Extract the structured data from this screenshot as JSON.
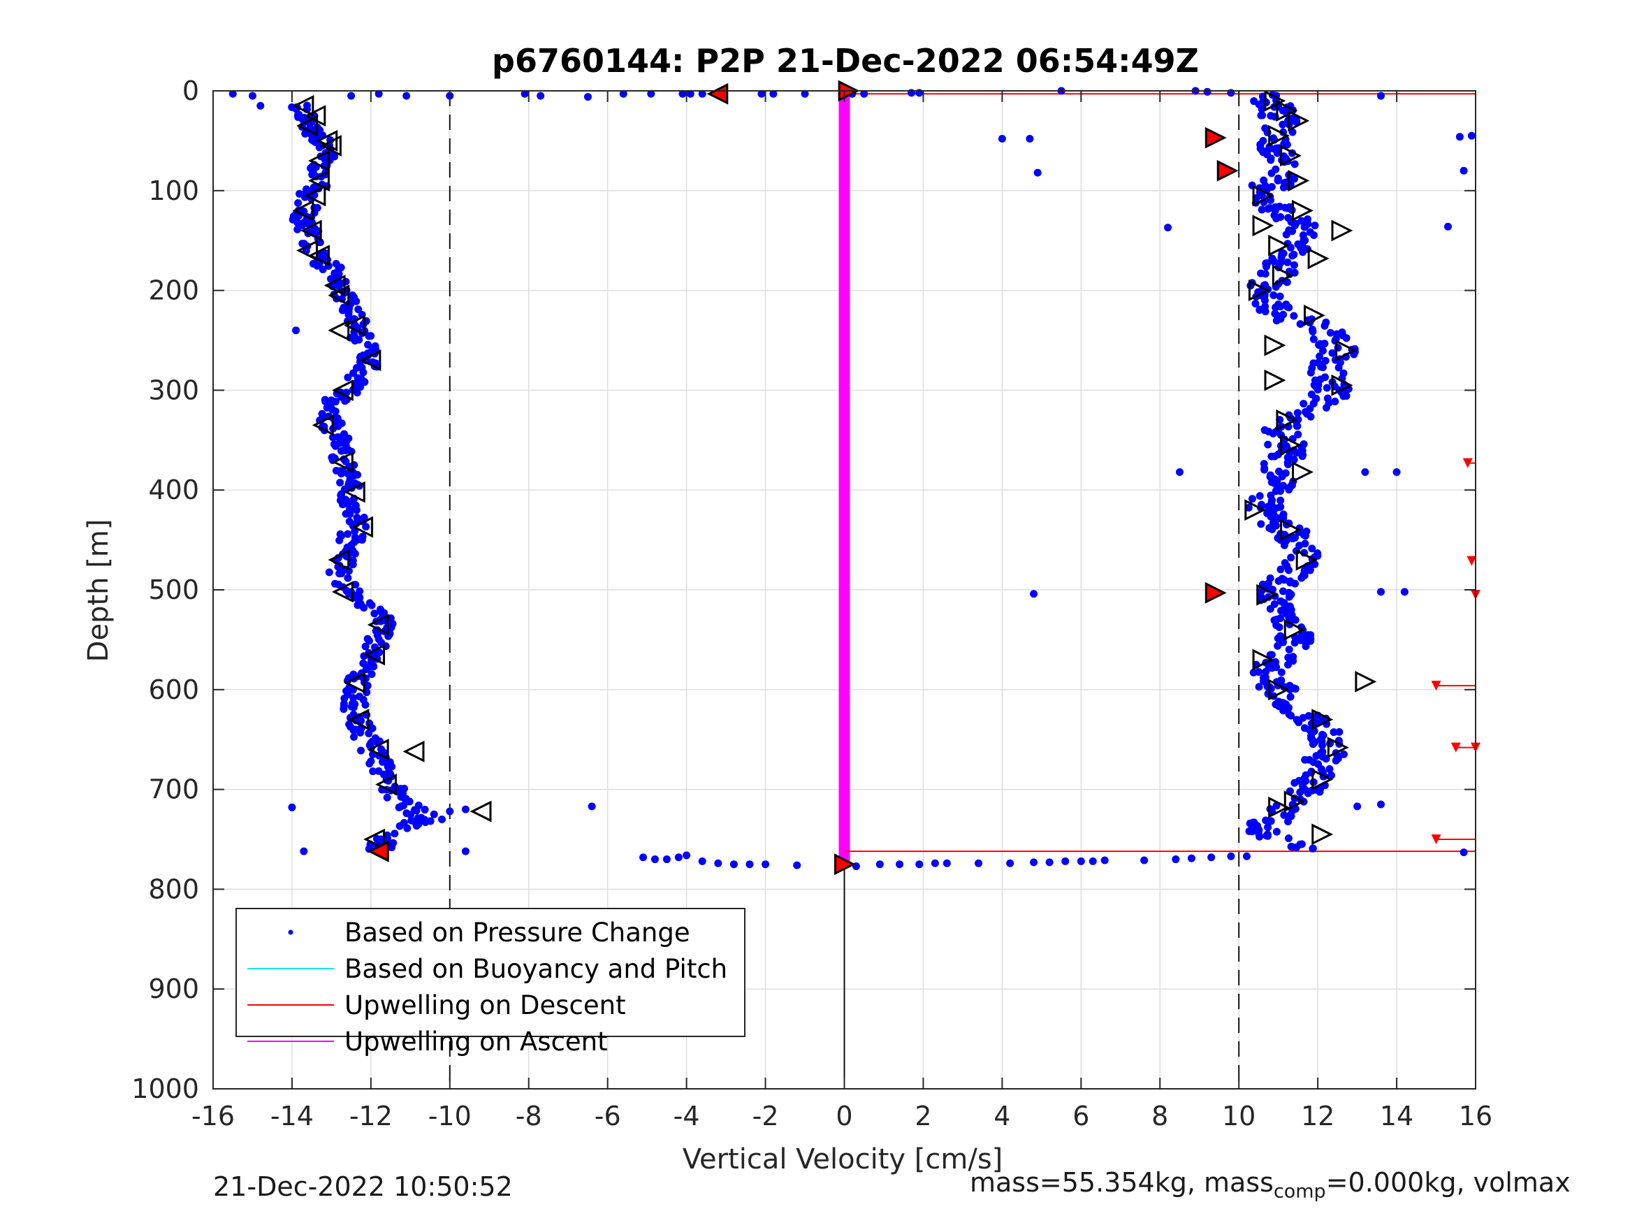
{
  "chart_data": {
    "type": "scatter",
    "title": "p6760144: P2P 21-Dec-2022 06:54:49Z",
    "xlabel": "Vertical Velocity [cm/s]",
    "ylabel": "Depth [m]",
    "xlim": [
      -16,
      16
    ],
    "ylim": [
      0,
      1000
    ],
    "y_reversed": true,
    "grid": true,
    "xticks": [
      -16,
      -14,
      -12,
      -10,
      -8,
      -6,
      -4,
      -2,
      0,
      2,
      4,
      6,
      8,
      10,
      12,
      14,
      16
    ],
    "yticks": [
      0,
      100,
      200,
      300,
      400,
      500,
      600,
      700,
      800,
      900,
      1000
    ],
    "reference_lines": {
      "vertical_dashed": [
        -10,
        10
      ],
      "vertical_solid": 0,
      "solid_depth_range": [
        770,
        1000
      ]
    },
    "legend": {
      "placement": "bottom-left",
      "entries": [
        {
          "label": "Based on Pressure Change",
          "style": "dot",
          "color": "#0000ff"
        },
        {
          "label": "Based on Buoyancy and Pitch",
          "style": "line",
          "color": "#00e5ee"
        },
        {
          "label": "Upwelling on Descent",
          "style": "line",
          "color": "#ff0000"
        },
        {
          "label": "Upwelling on Ascent",
          "style": "line",
          "color": "#ff00ff"
        }
      ]
    },
    "series": [
      {
        "name": "Based on Pressure Change",
        "color": "#0000ff",
        "descent_profile": [
          [
            -13.9,
            10
          ],
          [
            -13.6,
            30
          ],
          [
            -13.3,
            50
          ],
          [
            -13.2,
            70
          ],
          [
            -13.3,
            90
          ],
          [
            -13.6,
            110
          ],
          [
            -13.7,
            130
          ],
          [
            -13.5,
            150
          ],
          [
            -13.2,
            170
          ],
          [
            -12.8,
            190
          ],
          [
            -12.6,
            210
          ],
          [
            -12.4,
            230
          ],
          [
            -12.2,
            250
          ],
          [
            -12.0,
            270
          ],
          [
            -12.4,
            290
          ],
          [
            -12.9,
            310
          ],
          [
            -13.0,
            330
          ],
          [
            -12.8,
            350
          ],
          [
            -12.7,
            370
          ],
          [
            -12.5,
            390
          ],
          [
            -12.6,
            410
          ],
          [
            -12.4,
            430
          ],
          [
            -12.5,
            450
          ],
          [
            -12.7,
            470
          ],
          [
            -12.8,
            490
          ],
          [
            -12.3,
            510
          ],
          [
            -11.7,
            530
          ],
          [
            -11.8,
            550
          ],
          [
            -12.0,
            570
          ],
          [
            -12.3,
            590
          ],
          [
            -12.4,
            610
          ],
          [
            -12.4,
            630
          ],
          [
            -12.1,
            650
          ],
          [
            -11.8,
            670
          ],
          [
            -11.6,
            690
          ],
          [
            -11.3,
            710
          ],
          [
            -10.6,
            730
          ],
          [
            -11.6,
            750
          ],
          [
            -11.8,
            760
          ]
        ],
        "ascent_profile": [
          [
            10.6,
            5
          ],
          [
            11.0,
            20
          ],
          [
            11.1,
            40
          ],
          [
            10.9,
            60
          ],
          [
            11.2,
            80
          ],
          [
            10.7,
            100
          ],
          [
            11.0,
            120
          ],
          [
            11.6,
            140
          ],
          [
            11.4,
            160
          ],
          [
            11.0,
            180
          ],
          [
            10.6,
            200
          ],
          [
            10.9,
            220
          ],
          [
            12.1,
            240
          ],
          [
            12.6,
            260
          ],
          [
            12.2,
            280
          ],
          [
            12.4,
            300
          ],
          [
            11.7,
            320
          ],
          [
            11.0,
            340
          ],
          [
            11.3,
            360
          ],
          [
            10.9,
            380
          ],
          [
            11.0,
            400
          ],
          [
            10.5,
            420
          ],
          [
            11.2,
            440
          ],
          [
            11.7,
            460
          ],
          [
            11.4,
            480
          ],
          [
            10.8,
            500
          ],
          [
            11.1,
            520
          ],
          [
            11.5,
            540
          ],
          [
            11.3,
            560
          ],
          [
            10.7,
            580
          ],
          [
            11.0,
            600
          ],
          [
            11.4,
            620
          ],
          [
            12.1,
            640
          ],
          [
            12.3,
            660
          ],
          [
            12.0,
            680
          ],
          [
            11.7,
            700
          ],
          [
            11.3,
            720
          ],
          [
            10.4,
            740
          ],
          [
            11.8,
            760
          ]
        ],
        "surface_points": [
          [
            -15.5,
            3
          ],
          [
            -15.0,
            5
          ],
          [
            -14.8,
            15
          ],
          [
            -12.5,
            5
          ],
          [
            -11.8,
            3
          ],
          [
            -11.1,
            5
          ],
          [
            -10.0,
            5
          ],
          [
            -8.1,
            3
          ],
          [
            -7.7,
            5
          ],
          [
            -6.5,
            6
          ],
          [
            -5.6,
            3
          ],
          [
            -4.9,
            3
          ],
          [
            -4.1,
            3
          ],
          [
            -3.9,
            3
          ],
          [
            -3.6,
            3
          ],
          [
            -2.1,
            3
          ],
          [
            -1.8,
            3
          ],
          [
            -1.0,
            3
          ],
          [
            0.2,
            3
          ],
          [
            0.5,
            3
          ],
          [
            1.7,
            2
          ],
          [
            1.9,
            2
          ],
          [
            5.5,
            0
          ],
          [
            8.9,
            0
          ],
          [
            9.2,
            1
          ],
          [
            9.8,
            2
          ],
          [
            13.6,
            5
          ]
        ],
        "outlier_points": [
          [
            4.0,
            48
          ],
          [
            4.7,
            48
          ],
          [
            4.9,
            82
          ],
          [
            8.2,
            137
          ],
          [
            15.3,
            136
          ],
          [
            15.6,
            46
          ],
          [
            15.9,
            45
          ],
          [
            15.7,
            80
          ],
          [
            8.5,
            382
          ],
          [
            14.0,
            382
          ],
          [
            13.2,
            382
          ],
          [
            4.8,
            504
          ],
          [
            13.6,
            502
          ],
          [
            14.2,
            502
          ],
          [
            13.6,
            715
          ],
          [
            13.0,
            717
          ],
          [
            15.7,
            763
          ],
          [
            -14.0,
            718
          ],
          [
            -13.7,
            762
          ],
          [
            -9.6,
            762
          ],
          [
            -6.4,
            717
          ],
          [
            -13.9,
            240
          ]
        ],
        "turn_points": [
          [
            -5.1,
            768
          ],
          [
            -4.8,
            770
          ],
          [
            -4.5,
            770
          ],
          [
            -4.2,
            768
          ],
          [
            -4.0,
            766
          ],
          [
            -3.6,
            772
          ],
          [
            -3.2,
            774
          ],
          [
            -2.8,
            775
          ],
          [
            -2.4,
            775
          ],
          [
            -2.0,
            775
          ],
          [
            -1.2,
            776
          ],
          [
            0.3,
            777
          ],
          [
            0.9,
            775
          ],
          [
            1.4,
            775
          ],
          [
            1.9,
            775
          ],
          [
            2.3,
            774
          ],
          [
            2.6,
            774
          ],
          [
            3.4,
            774
          ],
          [
            4.2,
            774
          ],
          [
            4.8,
            773
          ],
          [
            5.2,
            773
          ],
          [
            5.6,
            772
          ],
          [
            6.0,
            772
          ],
          [
            6.3,
            772
          ],
          [
            6.6,
            771
          ],
          [
            7.6,
            771
          ],
          [
            8.4,
            770
          ],
          [
            8.8,
            769
          ],
          [
            9.3,
            768
          ],
          [
            9.8,
            767
          ],
          [
            10.2,
            767
          ]
        ],
        "transition_points": [
          [
            -10.8,
            732
          ],
          [
            -10.4,
            725
          ],
          [
            -10.0,
            722
          ],
          [
            -9.6,
            720
          ],
          [
            -10.2,
            730
          ]
        ]
      },
      {
        "name": "Upwelling on Descent",
        "color": "#ff0000",
        "lines": [
          {
            "x": [
              0,
              16
            ],
            "y": 3
          },
          {
            "x": [
              0,
              16
            ],
            "y": 762
          },
          {
            "x": [
              15.8,
              16
            ],
            "y": 373
          },
          {
            "x": [
              15.0,
              16
            ],
            "y": 596
          },
          {
            "x": [
              15.5,
              16
            ],
            "y": 658
          },
          {
            "x": [
              15.0,
              16
            ],
            "y": 750
          }
        ],
        "markers": [
          [
            15.8,
            373
          ],
          [
            15.9,
            471
          ],
          [
            16.0,
            505
          ],
          [
            15.0,
            596
          ],
          [
            15.5,
            658
          ],
          [
            16.0,
            658
          ],
          [
            15.0,
            750
          ]
        ]
      },
      {
        "name": "Upwelling on Ascent",
        "color": "#ff00ff",
        "line": {
          "x": 0,
          "y": [
            3,
            775
          ]
        }
      },
      {
        "name": "descent_triangles",
        "marker": "triangle-left",
        "points": [
          [
            -13.7,
            15
          ],
          [
            -13.4,
            25
          ],
          [
            -13.6,
            35
          ],
          [
            -13.1,
            50
          ],
          [
            -13.0,
            55
          ],
          [
            -13.3,
            70
          ],
          [
            -13.3,
            90
          ],
          [
            -13.4,
            105
          ],
          [
            -13.7,
            120
          ],
          [
            -13.5,
            140
          ],
          [
            -13.6,
            160
          ],
          [
            -13.3,
            165
          ],
          [
            -12.9,
            195
          ],
          [
            -12.8,
            205
          ],
          [
            -12.8,
            240
          ],
          [
            -12.4,
            235
          ],
          [
            -12.0,
            270
          ],
          [
            -12.7,
            300
          ],
          [
            -13.2,
            335
          ],
          [
            -12.7,
            372
          ],
          [
            -12.4,
            402
          ],
          [
            -12.2,
            437
          ],
          [
            -12.8,
            470
          ],
          [
            -12.7,
            502
          ],
          [
            -11.8,
            535
          ],
          [
            -11.9,
            565
          ],
          [
            -12.4,
            593
          ],
          [
            -12.3,
            630
          ],
          [
            -11.8,
            660
          ],
          [
            -10.9,
            662
          ],
          [
            -11.6,
            695
          ],
          [
            -9.2,
            722
          ],
          [
            -11.9,
            750
          ],
          [
            -11.8,
            762
          ]
        ],
        "red_filled": [
          [
            -3.2,
            3
          ],
          [
            -11.8,
            762
          ]
        ]
      },
      {
        "name": "ascent_triangles",
        "marker": "triangle-right",
        "points": [
          [
            10.9,
            10
          ],
          [
            11.2,
            20
          ],
          [
            11.5,
            30
          ],
          [
            11.0,
            45
          ],
          [
            11.3,
            65
          ],
          [
            11.5,
            90
          ],
          [
            10.6,
            105
          ],
          [
            11.6,
            120
          ],
          [
            10.6,
            135
          ],
          [
            12.6,
            140
          ],
          [
            11.0,
            155
          ],
          [
            12.0,
            168
          ],
          [
            11.1,
            185
          ],
          [
            10.5,
            200
          ],
          [
            11.9,
            225
          ],
          [
            10.9,
            255
          ],
          [
            12.7,
            260
          ],
          [
            12.6,
            295
          ],
          [
            10.9,
            290
          ],
          [
            11.2,
            330
          ],
          [
            11.3,
            355
          ],
          [
            11.6,
            382
          ],
          [
            10.4,
            420
          ],
          [
            11.3,
            440
          ],
          [
            11.7,
            470
          ],
          [
            10.7,
            505
          ],
          [
            11.4,
            540
          ],
          [
            10.6,
            570
          ],
          [
            13.2,
            592
          ],
          [
            11.0,
            600
          ],
          [
            12.1,
            630
          ],
          [
            12.5,
            658
          ],
          [
            12.1,
            690
          ],
          [
            11.4,
            712
          ],
          [
            11.0,
            718
          ],
          [
            12.1,
            745
          ]
        ],
        "red_filled": [
          [
            0.1,
            0
          ],
          [
            9.4,
            47
          ],
          [
            9.7,
            80
          ],
          [
            9.4,
            503
          ],
          [
            0.0,
            775
          ]
        ]
      }
    ]
  },
  "footer": {
    "timestamp": "21-Dec-2022 10:50:52",
    "mass_prefix": "mass=55.354kg, mass",
    "mass_sub": "comp",
    "mass_suffix": "=0.000kg, volmax"
  }
}
